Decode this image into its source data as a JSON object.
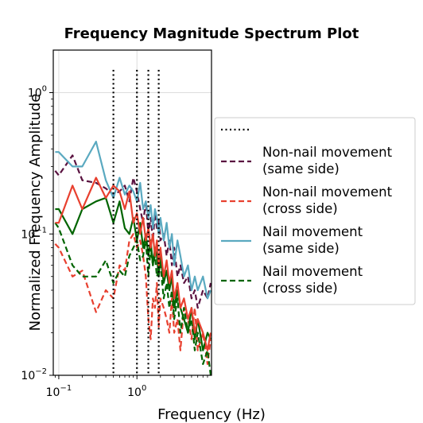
{
  "chart_data": {
    "type": "line",
    "title": "Frequency Magnitude Spectrum Plot",
    "xlabel": "Frequency (Hz)",
    "ylabel": "Normalized Frequency Amplitude",
    "x_scale": "log",
    "y_scale": "log",
    "xlim": [
      0.085,
      9.0
    ],
    "ylim": [
      0.01,
      2.0
    ],
    "x_ticks": [
      {
        "value": 0.1,
        "base": "10",
        "exp": "−1"
      },
      {
        "value": 1.0,
        "base": "10",
        "exp": "0"
      }
    ],
    "y_ticks": [
      {
        "value": 0.01,
        "base": "10",
        "exp": "−2"
      },
      {
        "value": 0.1,
        "base": "10",
        "exp": "−1"
      },
      {
        "value": 1.0,
        "base": "10",
        "exp": "0"
      }
    ],
    "grid": true,
    "legend_position": "right",
    "vlines": {
      "name": "",
      "x": [
        0.5,
        1.0,
        1.4,
        1.9
      ],
      "ymax": 1.45,
      "color": "#000000"
    },
    "series": [
      {
        "name_lines": [
          "Non-nail movement",
          "(same side)"
        ],
        "color": "#5a1240",
        "dash": "dashed",
        "x": [
          0.09,
          0.1,
          0.15,
          0.2,
          0.3,
          0.4,
          0.5,
          0.6,
          0.7,
          0.8,
          0.9,
          1.0,
          1.1,
          1.2,
          1.3,
          1.4,
          1.5,
          1.6,
          1.7,
          1.8,
          1.9,
          2.0,
          2.2,
          2.4,
          2.6,
          2.8,
          3.0,
          3.3,
          3.6,
          4.0,
          4.5,
          5.0,
          5.5,
          6.0,
          7.0,
          8.0,
          8.8
        ],
        "y": [
          0.28,
          0.26,
          0.36,
          0.24,
          0.23,
          0.21,
          0.19,
          0.2,
          0.22,
          0.17,
          0.25,
          0.2,
          0.15,
          0.12,
          0.17,
          0.1,
          0.13,
          0.09,
          0.14,
          0.11,
          0.13,
          0.09,
          0.1,
          0.07,
          0.09,
          0.06,
          0.08,
          0.05,
          0.06,
          0.045,
          0.05,
          0.035,
          0.04,
          0.03,
          0.04,
          0.035,
          0.045
        ]
      },
      {
        "name_lines": [
          "Non-nail movement",
          "(cross side)"
        ],
        "color": "#e8402f",
        "dash": "dashed",
        "x": [
          0.09,
          0.1,
          0.15,
          0.2,
          0.3,
          0.4,
          0.5,
          0.6,
          0.7,
          0.8,
          0.9,
          1.0,
          1.1,
          1.2,
          1.3,
          1.4,
          1.5,
          1.6,
          1.7,
          1.8,
          1.9,
          2.0,
          2.2,
          2.4,
          2.6,
          2.8,
          3.0,
          3.3,
          3.6,
          4.0,
          4.5,
          5.0,
          5.5,
          6.0,
          7.0,
          8.0,
          8.8
        ],
        "y": [
          0.085,
          0.08,
          0.05,
          0.055,
          0.028,
          0.04,
          0.035,
          0.06,
          0.055,
          0.09,
          0.1,
          0.08,
          0.09,
          0.07,
          0.05,
          0.025,
          0.018,
          0.035,
          0.03,
          0.045,
          0.022,
          0.035,
          0.03,
          0.025,
          0.02,
          0.035,
          0.02,
          0.025,
          0.015,
          0.03,
          0.025,
          0.018,
          0.03,
          0.015,
          0.02,
          0.012,
          0.018
        ]
      },
      {
        "name_lines": [
          "Nail movement",
          "(same side)"
        ],
        "color": "#5aa9c0",
        "dash": "solid",
        "x": [
          0.09,
          0.1,
          0.15,
          0.2,
          0.3,
          0.4,
          0.5,
          0.6,
          0.7,
          0.8,
          0.9,
          1.0,
          1.1,
          1.2,
          1.3,
          1.4,
          1.5,
          1.6,
          1.7,
          1.8,
          1.9,
          2.0,
          2.2,
          2.4,
          2.6,
          2.8,
          3.0,
          3.3,
          3.6,
          4.0,
          4.5,
          5.0,
          5.5,
          6.0,
          7.0,
          8.0,
          8.8
        ],
        "y": [
          0.38,
          0.38,
          0.3,
          0.3,
          0.45,
          0.24,
          0.18,
          0.25,
          0.19,
          0.22,
          0.2,
          0.17,
          0.23,
          0.15,
          0.17,
          0.13,
          0.16,
          0.11,
          0.15,
          0.13,
          0.1,
          0.13,
          0.09,
          0.12,
          0.08,
          0.1,
          0.06,
          0.09,
          0.07,
          0.05,
          0.06,
          0.04,
          0.05,
          0.04,
          0.05,
          0.035,
          0.04
        ]
      },
      {
        "name_lines": [
          "Nail movement",
          "(cross side)"
        ],
        "color": "#006400",
        "dash": "dashed",
        "x": [
          0.09,
          0.1,
          0.15,
          0.2,
          0.3,
          0.4,
          0.5,
          0.6,
          0.7,
          0.8,
          0.9,
          1.0,
          1.1,
          1.2,
          1.3,
          1.4,
          1.5,
          1.6,
          1.7,
          1.8,
          1.9,
          2.0,
          2.2,
          2.4,
          2.6,
          2.8,
          3.0,
          3.3,
          3.6,
          4.0,
          4.5,
          5.0,
          5.5,
          6.0,
          7.0,
          8.0,
          8.8
        ],
        "y": [
          0.12,
          0.11,
          0.06,
          0.05,
          0.05,
          0.065,
          0.045,
          0.055,
          0.05,
          0.07,
          0.08,
          0.09,
          0.065,
          0.07,
          0.09,
          0.05,
          0.08,
          0.06,
          0.07,
          0.05,
          0.055,
          0.06,
          0.035,
          0.045,
          0.03,
          0.04,
          0.025,
          0.035,
          0.02,
          0.03,
          0.02,
          0.025,
          0.015,
          0.02,
          0.012,
          0.015,
          0.01
        ]
      },
      {
        "name_lines": [],
        "color": "#006400",
        "dash": "solid",
        "x": [
          0.09,
          0.1,
          0.15,
          0.2,
          0.3,
          0.4,
          0.5,
          0.6,
          0.7,
          0.8,
          0.9,
          1.0,
          1.1,
          1.2,
          1.3,
          1.4,
          1.5,
          1.6,
          1.7,
          1.8,
          1.9,
          2.0,
          2.2,
          2.4,
          2.6,
          2.8,
          3.0,
          3.3,
          3.6,
          4.0,
          4.5,
          5.0,
          5.5,
          6.0,
          7.0,
          8.0,
          8.8
        ],
        "y": [
          0.15,
          0.15,
          0.1,
          0.15,
          0.17,
          0.18,
          0.12,
          0.17,
          0.11,
          0.1,
          0.13,
          0.09,
          0.12,
          0.08,
          0.1,
          0.07,
          0.09,
          0.06,
          0.08,
          0.07,
          0.05,
          0.07,
          0.045,
          0.055,
          0.04,
          0.05,
          0.03,
          0.04,
          0.03,
          0.025,
          0.02,
          0.03,
          0.018,
          0.025,
          0.015,
          0.02,
          0.018
        ]
      },
      {
        "name_lines": [],
        "color": "#e8402f",
        "dash": "solid",
        "x": [
          0.09,
          0.1,
          0.15,
          0.2,
          0.3,
          0.4,
          0.5,
          0.6,
          0.7,
          0.8,
          0.9,
          1.0,
          1.1,
          1.2,
          1.3,
          1.4,
          1.5,
          1.6,
          1.7,
          1.8,
          1.9,
          2.0,
          2.2,
          2.4,
          2.6,
          2.8,
          3.0,
          3.3,
          3.6,
          4.0,
          4.5,
          5.0,
          5.5,
          6.0,
          7.0,
          8.0,
          8.8
        ],
        "y": [
          0.12,
          0.12,
          0.22,
          0.15,
          0.25,
          0.18,
          0.22,
          0.2,
          0.15,
          0.2,
          0.12,
          0.14,
          0.1,
          0.13,
          0.09,
          0.11,
          0.08,
          0.1,
          0.07,
          0.09,
          0.06,
          0.08,
          0.05,
          0.065,
          0.045,
          0.055,
          0.035,
          0.045,
          0.03,
          0.035,
          0.025,
          0.03,
          0.02,
          0.025,
          0.02,
          0.015,
          0.02
        ]
      }
    ]
  }
}
